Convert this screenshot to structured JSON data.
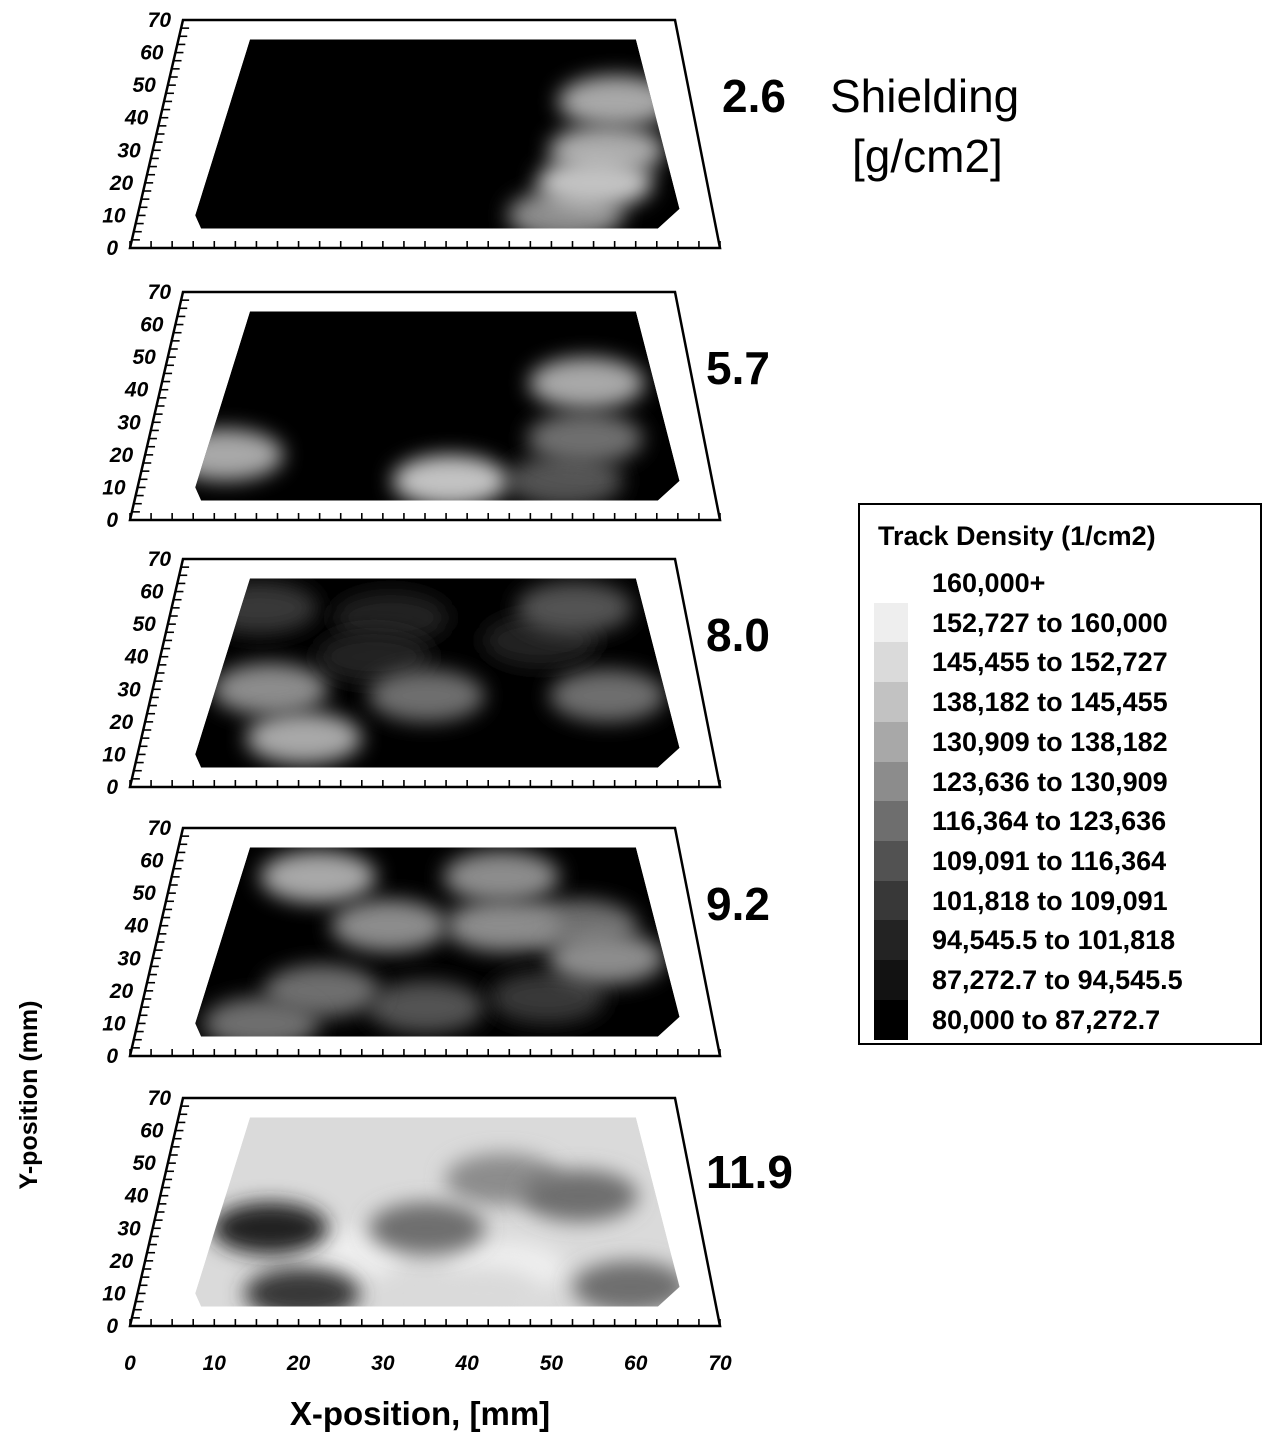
{
  "chart_data": {
    "type": "heatmap",
    "xlabel": "X-position, [mm]",
    "ylabel": "Y-position (mm)",
    "xlim": [
      0,
      70
    ],
    "ylim": [
      0,
      70
    ],
    "x_ticks": [
      "0",
      "10",
      "20",
      "30",
      "40",
      "50",
      "60",
      "70"
    ],
    "y_ticks": [
      "0",
      "10",
      "20",
      "30",
      "40",
      "50",
      "60",
      "70"
    ],
    "shielding_title": "Shielding",
    "shielding_unit": "[g/cm2]",
    "panels": [
      {
        "shielding": "2.6",
        "blobs": [
          {
            "x": 52,
            "y": 10,
            "level": 5
          },
          {
            "x": 60,
            "y": 45,
            "level": 4
          },
          {
            "x": 58,
            "y": 30,
            "level": 4
          },
          {
            "x": 56,
            "y": 20,
            "level": 3
          }
        ]
      },
      {
        "shielding": "5.7",
        "blobs": [
          {
            "x": 52,
            "y": 12,
            "level": 7
          },
          {
            "x": 55,
            "y": 25,
            "level": 6
          },
          {
            "x": 56,
            "y": 42,
            "level": 4
          },
          {
            "x": 10,
            "y": 20,
            "level": 4
          },
          {
            "x": 38,
            "y": 12,
            "level": 3
          }
        ]
      },
      {
        "shielding": "8.0",
        "blobs": [
          {
            "x": 12,
            "y": 55,
            "level": 8
          },
          {
            "x": 30,
            "y": 52,
            "level": 9
          },
          {
            "x": 50,
            "y": 45,
            "level": 9
          },
          {
            "x": 55,
            "y": 55,
            "level": 7
          },
          {
            "x": 28,
            "y": 40,
            "level": 9
          },
          {
            "x": 58,
            "y": 28,
            "level": 6
          },
          {
            "x": 15,
            "y": 30,
            "level": 5
          },
          {
            "x": 35,
            "y": 28,
            "level": 6
          },
          {
            "x": 20,
            "y": 15,
            "level": 4
          }
        ]
      },
      {
        "shielding": "9.2",
        "blobs": [
          {
            "x": 58,
            "y": 13,
            "level": 11
          },
          {
            "x": 50,
            "y": 18,
            "level": 8
          },
          {
            "x": 35,
            "y": 15,
            "level": 7
          },
          {
            "x": 22,
            "y": 20,
            "level": 6
          },
          {
            "x": 15,
            "y": 10,
            "level": 6
          },
          {
            "x": 55,
            "y": 40,
            "level": 6
          },
          {
            "x": 45,
            "y": 40,
            "level": 5
          },
          {
            "x": 30,
            "y": 40,
            "level": 5
          },
          {
            "x": 45,
            "y": 55,
            "level": 5
          },
          {
            "x": 20,
            "y": 55,
            "level": 4
          },
          {
            "x": 58,
            "y": 30,
            "level": 5
          }
        ]
      },
      {
        "shielding": "11.9",
        "blobs": [
          {
            "x": 25,
            "y": 22,
            "level": 1
          },
          {
            "x": 45,
            "y": 18,
            "level": 1
          },
          {
            "x": 42,
            "y": 10,
            "level": 2
          },
          {
            "x": 45,
            "y": 45,
            "level": 5
          },
          {
            "x": 35,
            "y": 30,
            "level": 6
          },
          {
            "x": 55,
            "y": 40,
            "level": 6
          },
          {
            "x": 60,
            "y": 12,
            "level": 6
          },
          {
            "x": 20,
            "y": 10,
            "level": 8
          },
          {
            "x": 15,
            "y": 30,
            "level": 9
          }
        ]
      }
    ],
    "legend": {
      "title": "Track Density (1/cm2)",
      "entries": [
        {
          "label": "160,000+",
          "color": "#ffffff"
        },
        {
          "label": "152,727 to 160,000",
          "color": "#eeeeee"
        },
        {
          "label": "145,455 to 152,727",
          "color": "#dadada"
        },
        {
          "label": "138,182 to 145,455",
          "color": "#c2c2c2"
        },
        {
          "label": "130,909 to 138,182",
          "color": "#a8a8a8"
        },
        {
          "label": "123,636 to 130,909",
          "color": "#8c8c8c"
        },
        {
          "label": "116,364 to 123,636",
          "color": "#6e6e6e"
        },
        {
          "label": "109,091 to 116,364",
          "color": "#525252"
        },
        {
          "label": "101,818 to 109,091",
          "color": "#383838"
        },
        {
          "label": "94,545.5 to 101,818",
          "color": "#232323"
        },
        {
          "label": "87,272.7 to 94,545.5",
          "color": "#121212"
        },
        {
          "label": "80,000 to 87,272.7",
          "color": "#000000"
        }
      ]
    }
  }
}
